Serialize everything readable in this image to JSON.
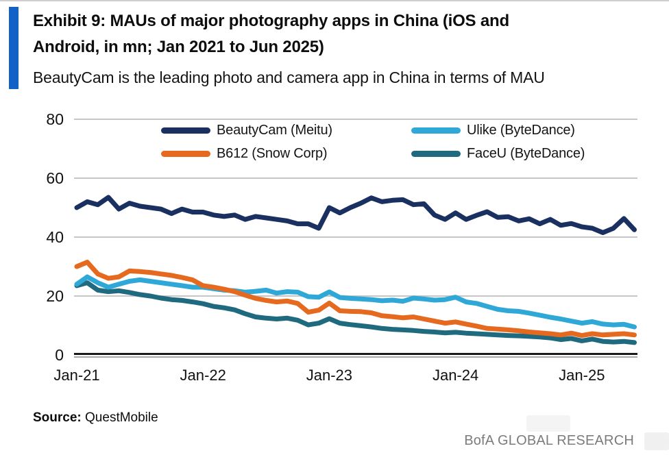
{
  "header": {
    "title_line1": "Exhibit 9: MAUs of major photography apps in China (iOS and",
    "title_line2": "Android, in mn; Jan 2021 to Jun 2025)",
    "subtitle": "BeautyCam is the leading photo and camera app in China in terms of MAU",
    "accent_color": "#1161C9"
  },
  "footer": {
    "source_label": "Source:",
    "source_value": "QuestMobile",
    "brand": "BofA GLOBAL RESEARCH"
  },
  "chart_data": {
    "type": "line",
    "title": "MAUs of major photography apps in China (iOS and Android, in mn)",
    "x_unit": "month",
    "x_start": "Jan-21",
    "x_end": "Jun-25",
    "n_points": 54,
    "x_tick_labels": [
      "Jan-21",
      "Jan-22",
      "Jan-23",
      "Jan-24",
      "Jan-25"
    ],
    "x_tick_month_index": [
      0,
      12,
      24,
      36,
      48
    ],
    "ylim": [
      0,
      80
    ],
    "y_ticks": [
      0,
      20,
      40,
      60,
      80
    ],
    "grid": "horizontal",
    "grid_color": "#c6c6c6",
    "axis_color": "#1a1a1a",
    "legend_position": "top-inside",
    "draw_order": [
      3,
      1,
      2,
      0
    ],
    "series": [
      {
        "name": "BeautyCam (Meitu)",
        "color": "#1A3060",
        "values": [
          50,
          52,
          51,
          53.5,
          49.5,
          51.5,
          50.5,
          50,
          49.5,
          48,
          49.5,
          48.5,
          48.5,
          47.5,
          47,
          47.5,
          46,
          47,
          46.5,
          46,
          45.5,
          44.5,
          44.5,
          43,
          50,
          48.2,
          50,
          51.5,
          53.3,
          52,
          52.5,
          52.7,
          51,
          51.3,
          47.5,
          46,
          48.2,
          46,
          47.4,
          48.6,
          46.7,
          46.9,
          45.5,
          46.2,
          44.5,
          46,
          44,
          44.6,
          43.5,
          43,
          41.5,
          43,
          46.3,
          42.5
        ]
      },
      {
        "name": "Ulike (ByteDance)",
        "color": "#2FA8D8",
        "values": [
          24,
          26.5,
          24.5,
          23,
          24,
          25,
          25.5,
          25,
          24.5,
          24,
          23.5,
          23,
          23,
          22.5,
          22,
          21.8,
          21.3,
          21.6,
          22,
          21,
          21.5,
          21.3,
          19.8,
          19.6,
          21.4,
          19.5,
          19.2,
          19,
          18.8,
          18.4,
          18.6,
          18.2,
          19.3,
          19,
          18.6,
          18.8,
          19.6,
          18,
          17.5,
          16.5,
          15.5,
          15,
          14.8,
          14.2,
          13.5,
          12.8,
          12.2,
          11.5,
          10.8,
          11.3,
          10.5,
          10.2,
          10.4,
          9.5
        ]
      },
      {
        "name": "B612 (Snow Corp)",
        "color": "#E5691E",
        "values": [
          30,
          31.5,
          27.5,
          26,
          26.5,
          28.5,
          28.3,
          28,
          27.5,
          27,
          26.3,
          25.5,
          23.5,
          23,
          22.3,
          21.5,
          20.3,
          19.2,
          18.5,
          18,
          18.3,
          17.5,
          14.5,
          15.2,
          17.6,
          15,
          14.8,
          14.7,
          14.3,
          13.3,
          13,
          12.6,
          12.9,
          12.2,
          11.5,
          10.8,
          11.2,
          10.5,
          9.8,
          9,
          8.8,
          8.5,
          8.2,
          7.8,
          7.5,
          7.2,
          6.8,
          7.4,
          6.6,
          7.2,
          6.8,
          7,
          7.2,
          6.8
        ]
      },
      {
        "name": "FaceU (ByteDance)",
        "color": "#1F6A7F",
        "values": [
          23.5,
          24.5,
          22,
          21.5,
          21.8,
          21.2,
          20.5,
          20,
          19.3,
          18.8,
          18.5,
          18,
          17.4,
          16.5,
          16,
          15.3,
          14,
          12.9,
          12.5,
          12.2,
          12.5,
          11.8,
          10.2,
          10.8,
          12.3,
          10.8,
          10.3,
          9.9,
          9.5,
          9,
          8.7,
          8.5,
          8.3,
          8,
          7.8,
          7.5,
          7.7,
          7.4,
          7.2,
          7,
          6.8,
          6.6,
          6.5,
          6.3,
          6.1,
          5.8,
          5.2,
          5.6,
          4.8,
          5.4,
          4.6,
          4.4,
          4.6,
          4.2
        ]
      }
    ]
  }
}
